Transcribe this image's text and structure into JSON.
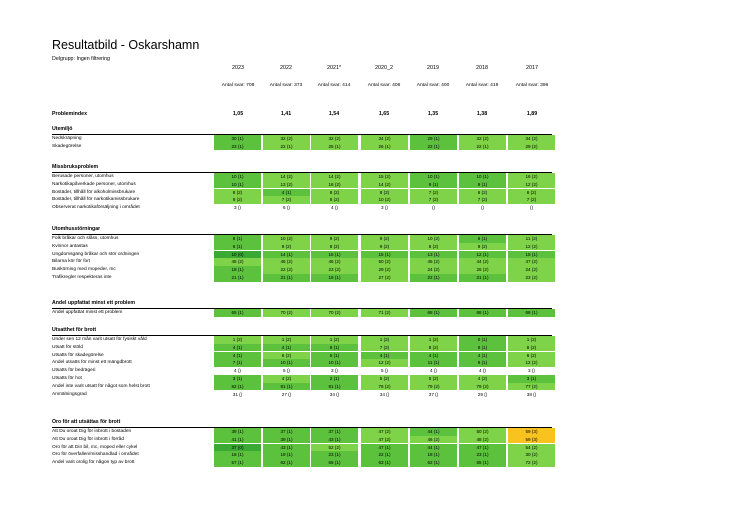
{
  "title": "Resultatbild - Oskarshamn",
  "subtitle": "Delgrupp: Ingen filtrering",
  "years": [
    "2023",
    "2022",
    "2021*",
    "2020_2",
    "2019",
    "2018",
    "2017"
  ],
  "n_answers": [
    "Antal svar: 708",
    "Antal svar: 373",
    "Antal svar: 414",
    "Antal svar: 406",
    "Antal svar: 400",
    "Antal svar: 419",
    "Antal svar: 396"
  ],
  "problemindex": {
    "label": "Problemindex",
    "values": [
      "1,05",
      "1,41",
      "1,54",
      "1,65",
      "1,35",
      "1,38",
      "1,89"
    ]
  },
  "colors": {
    "dark": "#3aaa35",
    "mid": "#5cc13c",
    "light": "#7ed348",
    "yellow": "#f9c31f"
  },
  "sections": [
    {
      "title": "Utemiljö",
      "rows": [
        {
          "label": "Nedskräpning",
          "cells": [
            [
              "30 (1)",
              "mid"
            ],
            [
              "32 (2)",
              "light"
            ],
            [
              "32 (2)",
              "light"
            ],
            [
              "34 (2)",
              "light"
            ],
            [
              "29 (1)",
              "mid"
            ],
            [
              "32 (2)",
              "light"
            ],
            [
              "34 (2)",
              "light"
            ]
          ]
        },
        {
          "label": "Skadegörelse",
          "cells": [
            [
              "23 (1)",
              "mid"
            ],
            [
              "22 (1)",
              "light"
            ],
            [
              "25 (1)",
              "light"
            ],
            [
              "26 (1)",
              "light"
            ],
            [
              "22 (1)",
              "mid"
            ],
            [
              "22 (1)",
              "light"
            ],
            [
              "29 (2)",
              "light"
            ]
          ]
        }
      ]
    },
    {
      "title": "Missbruksproblem",
      "rows": [
        {
          "label": "Berusade personer, utomhus",
          "cells": [
            [
              "10 (1)",
              "mid"
            ],
            [
              "14 (2)",
              "light"
            ],
            [
              "14 (2)",
              "light"
            ],
            [
              "15 (2)",
              "light"
            ],
            [
              "10 (1)",
              "mid"
            ],
            [
              "10 (1)",
              "mid"
            ],
            [
              "16 (2)",
              "light"
            ]
          ]
        },
        {
          "label": "Narkotikapåverkade personer, utomhus",
          "cells": [
            [
              "10 (1)",
              "mid"
            ],
            [
              "13 (2)",
              "light"
            ],
            [
              "16 (2)",
              "light"
            ],
            [
              "14 (2)",
              "light"
            ],
            [
              "9 (1)",
              "mid"
            ],
            [
              "9 (1)",
              "mid"
            ],
            [
              "12 (2)",
              "light"
            ]
          ]
        },
        {
          "label": "Bostäder, tillhåll för alkoholmissbrukare",
          "cells": [
            [
              "8 (2)",
              "light"
            ],
            [
              "4 (1)",
              "mid"
            ],
            [
              "8 (2)",
              "light"
            ],
            [
              "8 (2)",
              "light"
            ],
            [
              "7 (2)",
              "light"
            ],
            [
              "6 (2)",
              "light"
            ],
            [
              "6 (2)",
              "light"
            ]
          ]
        },
        {
          "label": "Bostäder, tillhåll för narkotikamissbrukare",
          "cells": [
            [
              "9 (2)",
              "light"
            ],
            [
              "7 (2)",
              "light"
            ],
            [
              "8 (2)",
              "light"
            ],
            [
              "10 (2)",
              "light"
            ],
            [
              "7 (2)",
              "light"
            ],
            [
              "7 (2)",
              "light"
            ],
            [
              "7 (2)",
              "light"
            ]
          ]
        },
        {
          "label": "Observerat narkotikaförsäljning i området",
          "cells": [
            [
              "3 ()",
              "none"
            ],
            [
              "6 ()",
              "none"
            ],
            [
              "4 ()",
              "none"
            ],
            [
              "3 ()",
              "none"
            ],
            [
              "()",
              "none"
            ],
            [
              "()",
              "none"
            ],
            [
              "()",
              "none"
            ]
          ]
        }
      ]
    },
    {
      "title": "Utomhusstörningar",
      "rows": [
        {
          "label": "Folk bråkar och slåss, utomhus",
          "cells": [
            [
              "8 (1)",
              "mid"
            ],
            [
              "10 (2)",
              "light"
            ],
            [
              "9 (2)",
              "light"
            ],
            [
              "9 (2)",
              "light"
            ],
            [
              "10 (2)",
              "light"
            ],
            [
              "6 (1)",
              "mid"
            ],
            [
              "11 (2)",
              "light"
            ]
          ]
        },
        {
          "label": "Kvinnor antastas",
          "cells": [
            [
              "6 (1)",
              "mid"
            ],
            [
              "9 (2)",
              "light"
            ],
            [
              "8 (2)",
              "light"
            ],
            [
              "9 (2)",
              "light"
            ],
            [
              "8 (2)",
              "light"
            ],
            [
              "9 (2)",
              "light"
            ],
            [
              "12 (2)",
              "light"
            ]
          ]
        },
        {
          "label": "Ungdomsgäng bråkar och stör ordningen",
          "cells": [
            [
              "10 (0)",
              "dark"
            ],
            [
              "14 (1)",
              "mid"
            ],
            [
              "15 (1)",
              "mid"
            ],
            [
              "15 (1)",
              "mid"
            ],
            [
              "13 (1)",
              "mid"
            ],
            [
              "12 (1)",
              "mid"
            ],
            [
              "15 (1)",
              "mid"
            ]
          ]
        },
        {
          "label": "Bilarna kör för fort",
          "cells": [
            [
              "45 (2)",
              "light"
            ],
            [
              "46 (2)",
              "light"
            ],
            [
              "46 (2)",
              "light"
            ],
            [
              "50 (2)",
              "light"
            ],
            [
              "45 (2)",
              "light"
            ],
            [
              "44 (2)",
              "light"
            ],
            [
              "47 (2)",
              "light"
            ]
          ]
        },
        {
          "label": "Buskörning med mopeder, mc",
          "cells": [
            [
              "18 (1)",
              "mid"
            ],
            [
              "22 (2)",
              "light"
            ],
            [
              "23 (2)",
              "light"
            ],
            [
              "29 (2)",
              "light"
            ],
            [
              "24 (2)",
              "light"
            ],
            [
              "26 (2)",
              "light"
            ],
            [
              "24 (2)",
              "light"
            ]
          ]
        },
        {
          "label": "Trafikregler respekteras inte",
          "cells": [
            [
              "21 (1)",
              "mid"
            ],
            [
              "21 (1)",
              "mid"
            ],
            [
              "19 (1)",
              "mid"
            ],
            [
              "27 (2)",
              "light"
            ],
            [
              "22 (1)",
              "mid"
            ],
            [
              "21 (1)",
              "mid"
            ],
            [
              "23 (2)",
              "light"
            ]
          ]
        }
      ]
    },
    {
      "title": "Andel uppfattat minst ett problem",
      "rows": [
        {
          "label": "Andel uppfattat minst ett problem",
          "cells": [
            [
              "65 (1)",
              "mid"
            ],
            [
              "70 (2)",
              "light"
            ],
            [
              "70 (2)",
              "light"
            ],
            [
              "71 (2)",
              "light"
            ],
            [
              "68 (1)",
              "mid"
            ],
            [
              "68 (1)",
              "mid"
            ],
            [
              "68 (1)",
              "mid"
            ]
          ]
        }
      ]
    },
    {
      "title": "Utsatthet för brott",
      "rows": [
        {
          "label": "Under sen 12 mån varit utsatt för fysiskt våld",
          "cells": [
            [
              "1 (2)",
              "light"
            ],
            [
              "1 (2)",
              "light"
            ],
            [
              "1 (2)",
              "light"
            ],
            [
              "1 (2)",
              "light"
            ],
            [
              "1 (2)",
              "light"
            ],
            [
              "0 (1)",
              "mid"
            ],
            [
              "1 (2)",
              "light"
            ]
          ]
        },
        {
          "label": "Utsatt för stöld",
          "cells": [
            [
              "4 (1)",
              "mid"
            ],
            [
              "4 (1)",
              "mid"
            ],
            [
              "6 (1)",
              "mid"
            ],
            [
              "7 (2)",
              "light"
            ],
            [
              "8 (2)",
              "light"
            ],
            [
              "6 (1)",
              "mid"
            ],
            [
              "8 (2)",
              "light"
            ]
          ]
        },
        {
          "label": "Utsatts för skadegörelse",
          "cells": [
            [
              "4 (1)",
              "mid"
            ],
            [
              "6 (2)",
              "light"
            ],
            [
              "5 (1)",
              "mid"
            ],
            [
              "4 (1)",
              "mid"
            ],
            [
              "4 (1)",
              "mid"
            ],
            [
              "4 (1)",
              "mid"
            ],
            [
              "6 (2)",
              "light"
            ]
          ]
        },
        {
          "label": "Andel utsatts för minst ett mängdbrott",
          "cells": [
            [
              "7 (1)",
              "mid"
            ],
            [
              "10 (1)",
              "mid"
            ],
            [
              "10 (1)",
              "mid"
            ],
            [
              "12 (2)",
              "light"
            ],
            [
              "11 (1)",
              "mid"
            ],
            [
              "9 (1)",
              "mid"
            ],
            [
              "12 (2)",
              "light"
            ]
          ]
        },
        {
          "label": "Utsatts för bedrägeri",
          "cells": [
            [
              "4 ()",
              "none"
            ],
            [
              "5 ()",
              "none"
            ],
            [
              "3 ()",
              "none"
            ],
            [
              "5 ()",
              "none"
            ],
            [
              "4 ()",
              "none"
            ],
            [
              "4 ()",
              "none"
            ],
            [
              "3 ()",
              "none"
            ]
          ]
        },
        {
          "label": "Utsatts för hot",
          "cells": [
            [
              "3 (1)",
              "mid"
            ],
            [
              "4 (2)",
              "light"
            ],
            [
              "2 (1)",
              "mid"
            ],
            [
              "5 (2)",
              "light"
            ],
            [
              "5 (2)",
              "light"
            ],
            [
              "4 (2)",
              "light"
            ],
            [
              "3 (1)",
              "mid"
            ]
          ]
        },
        {
          "label": "Andel inte varit utsatt för något som helst brott",
          "cells": [
            [
              "82 (1)",
              "mid"
            ],
            [
              "81 (1)",
              "mid"
            ],
            [
              "81 (1)",
              "mid"
            ],
            [
              "76 (2)",
              "light"
            ],
            [
              "79 (2)",
              "light"
            ],
            [
              "79 (2)",
              "light"
            ],
            [
              "77 (2)",
              "light"
            ]
          ]
        },
        {
          "label": "Anmälningsgrad",
          "cells": [
            [
              "31 ()",
              "none"
            ],
            [
              "27 ()",
              "none"
            ],
            [
              "34 ()",
              "none"
            ],
            [
              "34 ()",
              "none"
            ],
            [
              "37 ()",
              "none"
            ],
            [
              "29 ()",
              "none"
            ],
            [
              "38 ()",
              "none"
            ]
          ]
        }
      ]
    },
    {
      "title": "Oro för att utsättas för brott",
      "rows": [
        {
          "label": "Att Du oroat Dig för inbrott i bostaden",
          "cells": [
            [
              "39 (1)",
              "mid"
            ],
            [
              "37 (1)",
              "mid"
            ],
            [
              "37 (1)",
              "mid"
            ],
            [
              "47 (2)",
              "light"
            ],
            [
              "44 (1)",
              "mid"
            ],
            [
              "50 (2)",
              "light"
            ],
            [
              "59 (3)",
              "yellow"
            ]
          ]
        },
        {
          "label": "Att Du oroat Dig för inbrott i förråd",
          "cells": [
            [
              "41 (1)",
              "mid"
            ],
            [
              "39 (1)",
              "mid"
            ],
            [
              "43 (1)",
              "mid"
            ],
            [
              "47 (2)",
              "light"
            ],
            [
              "46 (2)",
              "light"
            ],
            [
              "48 (2)",
              "light"
            ],
            [
              "59 (3)",
              "yellow"
            ]
          ]
        },
        {
          "label": "Oro för att Din bil, mc, moped eller cykel",
          "cells": [
            [
              "37 (0)",
              "dark"
            ],
            [
              "43 (1)",
              "mid"
            ],
            [
              "52 (2)",
              "light"
            ],
            [
              "47 (1)",
              "mid"
            ],
            [
              "44 (1)",
              "mid"
            ],
            [
              "47 (1)",
              "mid"
            ],
            [
              "54 (2)",
              "light"
            ]
          ]
        },
        {
          "label": "Oro för överfallen/misshandlad i området",
          "cells": [
            [
              "18 (1)",
              "mid"
            ],
            [
              "19 (1)",
              "mid"
            ],
            [
              "23 (1)",
              "mid"
            ],
            [
              "22 (1)",
              "mid"
            ],
            [
              "18 (1)",
              "mid"
            ],
            [
              "23 (1)",
              "mid"
            ],
            [
              "30 (2)",
              "light"
            ]
          ]
        },
        {
          "label": "Andel varit orolig för någon typ av brott",
          "cells": [
            [
              "57 (1)",
              "mid"
            ],
            [
              "62 (1)",
              "mid"
            ],
            [
              "65 (1)",
              "mid"
            ],
            [
              "63 (1)",
              "mid"
            ],
            [
              "62 (1)",
              "mid"
            ],
            [
              "65 (1)",
              "mid"
            ],
            [
              "72 (2)",
              "light"
            ]
          ]
        }
      ]
    }
  ]
}
